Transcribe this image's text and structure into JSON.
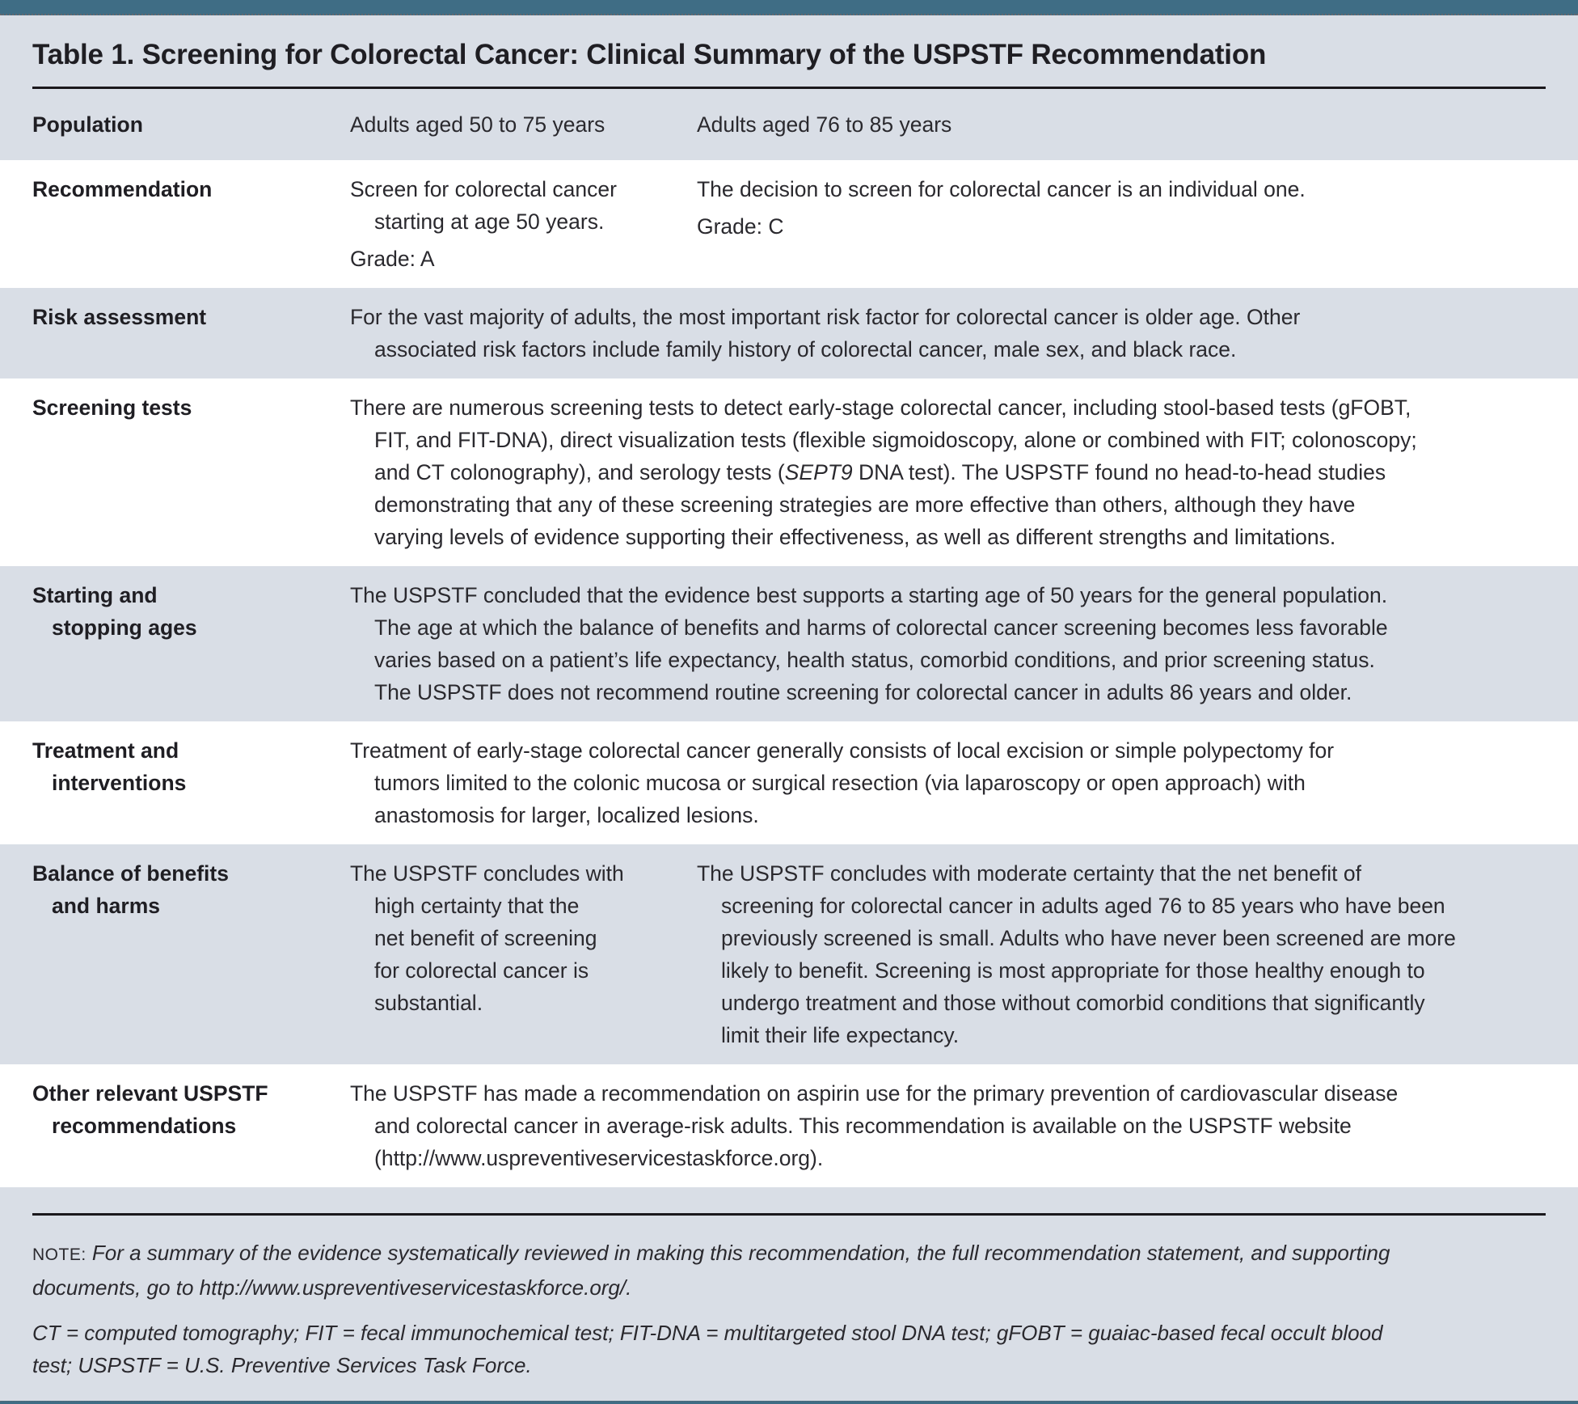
{
  "title": "Table 1. Screening for Colorectal Cancer: Clinical Summary of the USPSTF Recommendation",
  "colors": {
    "accent_teal": "#3f6d85",
    "band_gray": "#d9dee6",
    "text": "#2a292e"
  },
  "rows": {
    "population": {
      "label": "Population",
      "col1": "Adults aged 50 to 75 years",
      "col2": "Adults aged 76 to 85 years"
    },
    "recommendation": {
      "label": "Recommendation",
      "col1_main": "Screen for colorectal cancer\nstarting at age 50 years.",
      "col1_grade": "Grade: A",
      "col2_main": "The decision to screen for colorectal cancer is an individual one.",
      "col2_grade": "Grade: C"
    },
    "risk": {
      "label": "Risk assessment",
      "text": "For the vast majority of adults, the most important risk factor for colorectal cancer is older age. Other\nassociated risk factors include family history of colorectal cancer, male sex, and black race."
    },
    "screening": {
      "label": "Screening tests",
      "text_before": "There are numerous screening tests to detect early-stage colorectal cancer, including stool-based tests (gFOBT,\nFIT, and FIT-DNA), direct visualization tests (flexible sigmoidoscopy, alone or combined with FIT; colonoscopy;\nand CT colonography), and serology tests (",
      "text_italic": "SEPT9",
      "text_after": " DNA test). The USPSTF found no head-to-head studies\ndemonstrating that any of these screening strategies are more effective than others, although they have\nvarying levels of evidence supporting their effectiveness, as well as different strengths and limitations."
    },
    "ages": {
      "label": "Starting and\nstopping ages",
      "text": "The USPSTF concluded that the evidence best supports a starting age of 50 years for the general population.\nThe age at which the balance of benefits and harms of colorectal cancer screening becomes less favorable\nvaries based on a patient’s life expectancy, health status, comorbid conditions, and prior screening status.\nThe USPSTF does not recommend routine screening for colorectal cancer in adults 86 years and older."
    },
    "treatment": {
      "label": "Treatment and\ninterventions",
      "text": "Treatment of early-stage colorectal cancer generally consists of local excision or simple polypectomy for\ntumors limited to the colonic mucosa or surgical resection (via laparoscopy or open approach) with\nanastomosis for larger, localized lesions."
    },
    "balance": {
      "label": "Balance of benefits\nand harms",
      "col1": "The USPSTF concludes with\nhigh certainty that the\nnet benefit of screening\nfor colorectal cancer is\nsubstantial.",
      "col2": "The USPSTF concludes with moderate certainty that the net benefit of\nscreening for colorectal cancer in adults aged 76 to 85 years who have been\npreviously screened is small. Adults who have never been screened are more\nlikely to benefit. Screening is most appropriate for those healthy enough to\nundergo treatment and those without comorbid conditions that significantly\nlimit their life expectancy."
    },
    "other": {
      "label": "Other relevant USPSTF\nrecommendations",
      "text": "The USPSTF has made a recommendation on aspirin use for the primary prevention of cardiovascular disease\nand colorectal cancer in average-risk adults. This recommendation is available on the USPSTF website\n(http://www.uspreventiveservicestaskforce.org)."
    }
  },
  "footer": {
    "note_label": "NOTE:",
    "note_text": " For a summary of the evidence systematically reviewed in making this recommendation, the full recommendation statement, and supporting\ndocuments, go to http://www.uspreventiveservicestaskforce.org/.",
    "abbreviations": "CT = computed tomography; FIT = fecal immunochemical test; FIT-DNA = multitargeted stool DNA test; gFOBT = guaiac-based fecal occult blood\ntest; USPSTF = U.S. Preventive Services Task Force."
  }
}
